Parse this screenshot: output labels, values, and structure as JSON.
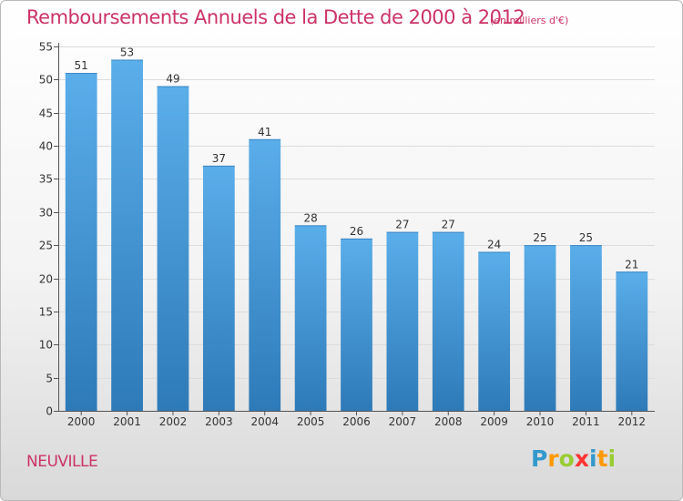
{
  "header": {
    "title": "Remboursements Annuels de la Dette de 2000 à 2012",
    "unit_note": "(en milliers d'€)"
  },
  "footer": {
    "place": "NEUVILLE",
    "logo_text": "Proxiti"
  },
  "colors": {
    "title": "#cc3366",
    "bar_top": "#5aaeea",
    "bar_bottom": "#2e7ab8",
    "logo": [
      "#3399cc",
      "#ff9900",
      "#99cc33",
      "#ff3333",
      "#3399cc",
      "#ff9900",
      "#99cc33"
    ]
  },
  "chart_data": {
    "type": "bar",
    "title": "Remboursements Annuels de la Dette de 2000 à 2012",
    "categories": [
      "2000",
      "2001",
      "2002",
      "2003",
      "2004",
      "2005",
      "2006",
      "2007",
      "2008",
      "2009",
      "2010",
      "2011",
      "2012"
    ],
    "values": [
      51,
      53,
      49,
      37,
      41,
      28,
      26,
      27,
      27,
      24,
      25,
      25,
      21
    ],
    "ylim": [
      0,
      55
    ],
    "yticks": [
      0,
      5,
      10,
      15,
      20,
      25,
      30,
      35,
      40,
      45,
      50,
      55
    ],
    "grid": true,
    "data_labels": true
  }
}
